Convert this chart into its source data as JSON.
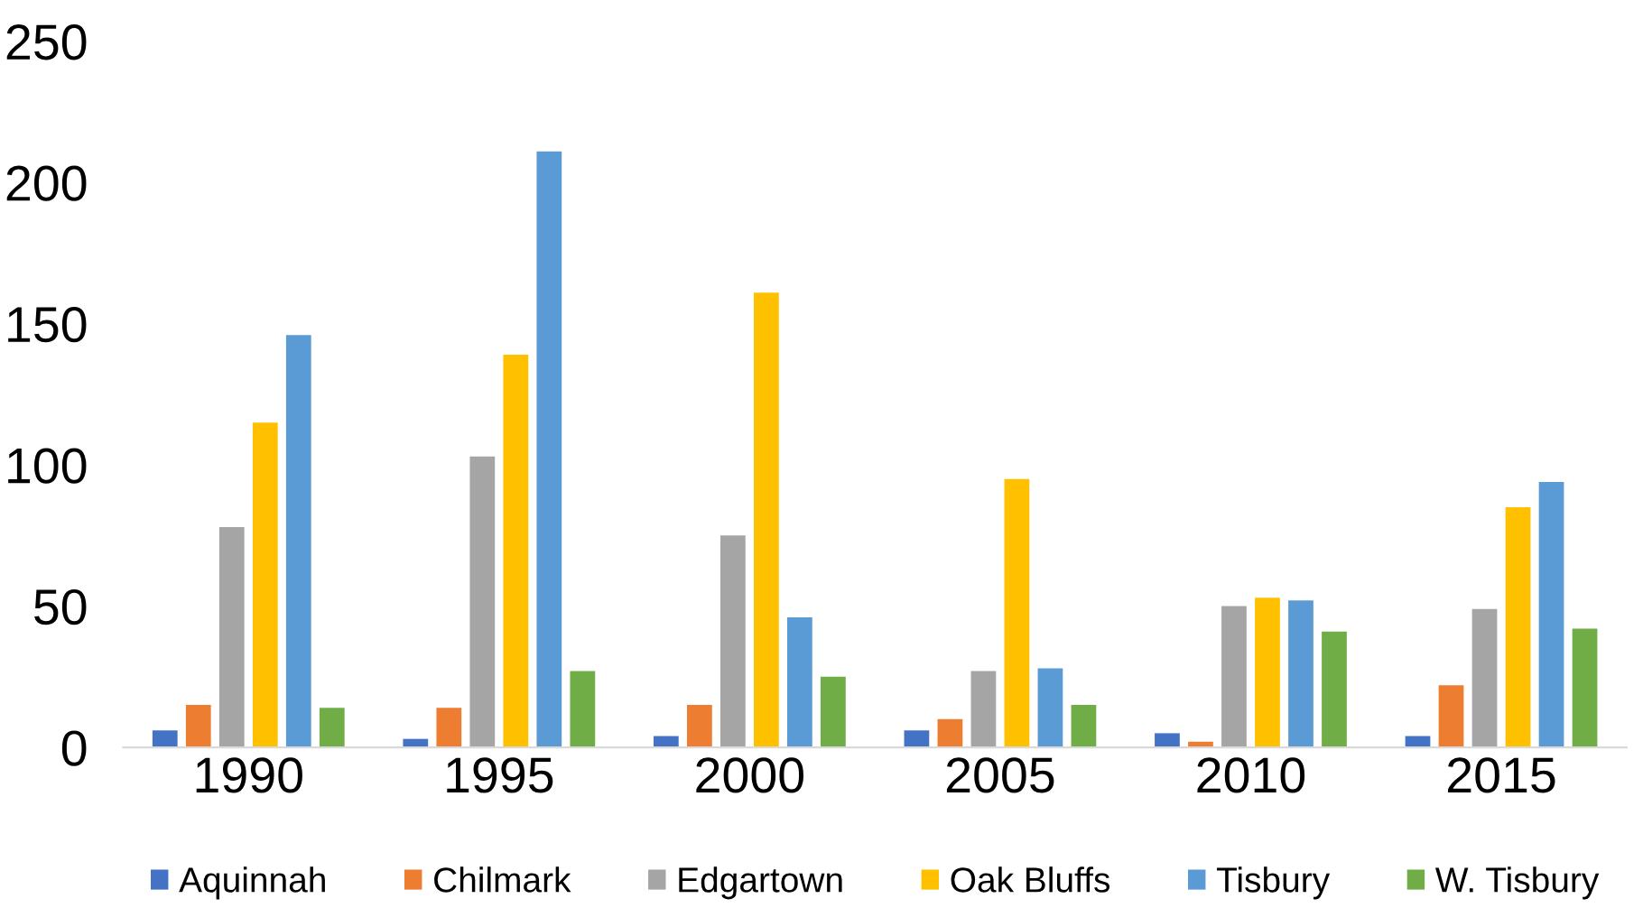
{
  "chart_data": {
    "type": "bar",
    "categories": [
      "1990",
      "1995",
      "2000",
      "2005",
      "2010",
      "2015"
    ],
    "series": [
      {
        "name": "Aquinnah",
        "color": "#4472c4",
        "values": [
          6,
          3,
          4,
          6,
          5,
          4
        ]
      },
      {
        "name": "Chilmark",
        "color": "#ed7d31",
        "values": [
          15,
          14,
          15,
          10,
          2,
          22
        ]
      },
      {
        "name": "Edgartown",
        "color": "#a5a5a5",
        "values": [
          78,
          103,
          75,
          27,
          50,
          49
        ]
      },
      {
        "name": "Oak Bluffs",
        "color": "#ffc000",
        "values": [
          115,
          139,
          161,
          95,
          53,
          85
        ]
      },
      {
        "name": "Tisbury",
        "color": "#5b9bd5",
        "values": [
          146,
          211,
          46,
          28,
          52,
          94
        ]
      },
      {
        "name": "W. Tisbury",
        "color": "#70ad47",
        "values": [
          14,
          27,
          25,
          15,
          41,
          42
        ]
      }
    ],
    "ylim": [
      0,
      250
    ],
    "yticks": [
      0,
      50,
      100,
      150,
      200,
      250
    ],
    "grid": false,
    "legend": "bottom"
  }
}
